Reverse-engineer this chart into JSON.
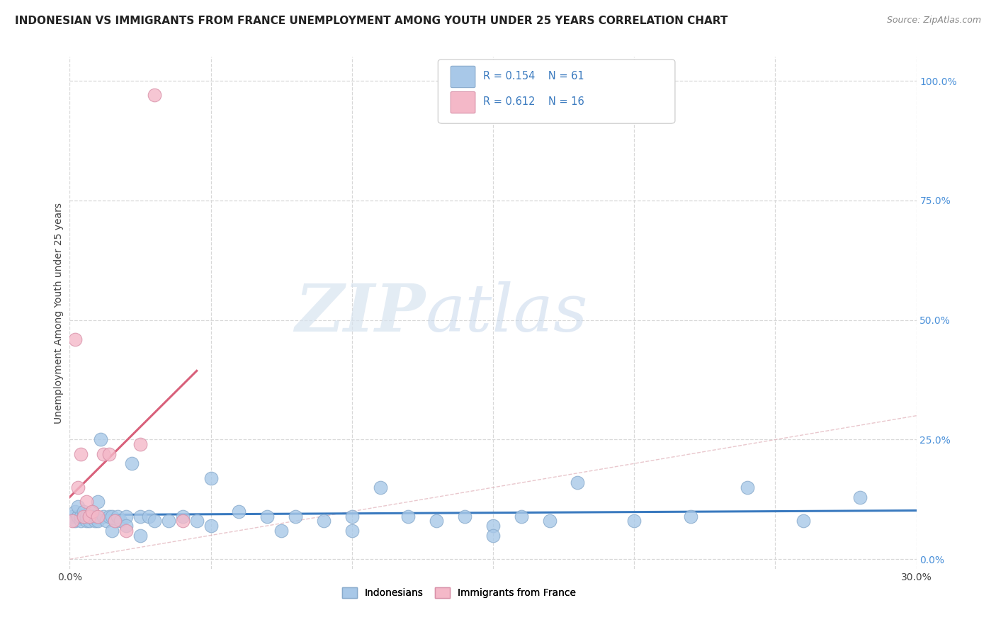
{
  "title": "INDONESIAN VS IMMIGRANTS FROM FRANCE UNEMPLOYMENT AMONG YOUTH UNDER 25 YEARS CORRELATION CHART",
  "source": "Source: ZipAtlas.com",
  "ylabel": "Unemployment Among Youth under 25 years",
  "xlim": [
    0.0,
    0.3
  ],
  "ylim": [
    -0.02,
    1.05
  ],
  "xticks": [
    0.0,
    0.05,
    0.1,
    0.15,
    0.2,
    0.25,
    0.3
  ],
  "xtick_labels": [
    "0.0%",
    "",
    "",
    "",
    "",
    "",
    "30.0%"
  ],
  "ytick_labels_right": [
    "0.0%",
    "25.0%",
    "50.0%",
    "75.0%",
    "100.0%"
  ],
  "ytick_vals": [
    0.0,
    0.25,
    0.5,
    0.75,
    1.0
  ],
  "R_indonesian": 0.154,
  "N_indonesian": 61,
  "R_france": 0.612,
  "N_france": 16,
  "color_indonesian": "#a8c8e8",
  "color_france": "#f4b8c8",
  "edge_color_indonesian": "#88aacc",
  "edge_color_france": "#d890a8",
  "line_color_indonesian": "#3a7abf",
  "line_color_france": "#d8607a",
  "diagonal_color": "#e0b0b8",
  "watermark_zip": "ZIP",
  "watermark_atlas": "atlas",
  "indonesian_x": [
    0.001,
    0.002,
    0.002,
    0.003,
    0.003,
    0.004,
    0.004,
    0.005,
    0.005,
    0.006,
    0.006,
    0.007,
    0.007,
    0.008,
    0.008,
    0.009,
    0.009,
    0.01,
    0.01,
    0.011,
    0.012,
    0.013,
    0.014,
    0.015,
    0.016,
    0.017,
    0.018,
    0.02,
    0.022,
    0.025,
    0.028,
    0.03,
    0.035,
    0.04,
    0.045,
    0.05,
    0.06,
    0.07,
    0.08,
    0.09,
    0.1,
    0.11,
    0.12,
    0.13,
    0.14,
    0.15,
    0.16,
    0.17,
    0.18,
    0.2,
    0.22,
    0.24,
    0.26,
    0.28,
    0.015,
    0.02,
    0.025,
    0.05,
    0.075,
    0.1,
    0.15
  ],
  "indonesian_y": [
    0.09,
    0.08,
    0.1,
    0.09,
    0.11,
    0.08,
    0.09,
    0.09,
    0.1,
    0.08,
    0.09,
    0.09,
    0.08,
    0.1,
    0.09,
    0.08,
    0.09,
    0.12,
    0.08,
    0.25,
    0.09,
    0.08,
    0.09,
    0.09,
    0.08,
    0.09,
    0.08,
    0.09,
    0.2,
    0.09,
    0.09,
    0.08,
    0.08,
    0.09,
    0.08,
    0.17,
    0.1,
    0.09,
    0.09,
    0.08,
    0.09,
    0.15,
    0.09,
    0.08,
    0.09,
    0.07,
    0.09,
    0.08,
    0.16,
    0.08,
    0.09,
    0.15,
    0.08,
    0.13,
    0.06,
    0.07,
    0.05,
    0.07,
    0.06,
    0.06,
    0.05
  ],
  "france_x": [
    0.001,
    0.002,
    0.003,
    0.004,
    0.005,
    0.006,
    0.007,
    0.008,
    0.01,
    0.012,
    0.014,
    0.016,
    0.02,
    0.025,
    0.03,
    0.04
  ],
  "france_y": [
    0.08,
    0.46,
    0.15,
    0.22,
    0.09,
    0.12,
    0.09,
    0.1,
    0.09,
    0.22,
    0.22,
    0.08,
    0.06,
    0.24,
    0.97,
    0.08
  ]
}
